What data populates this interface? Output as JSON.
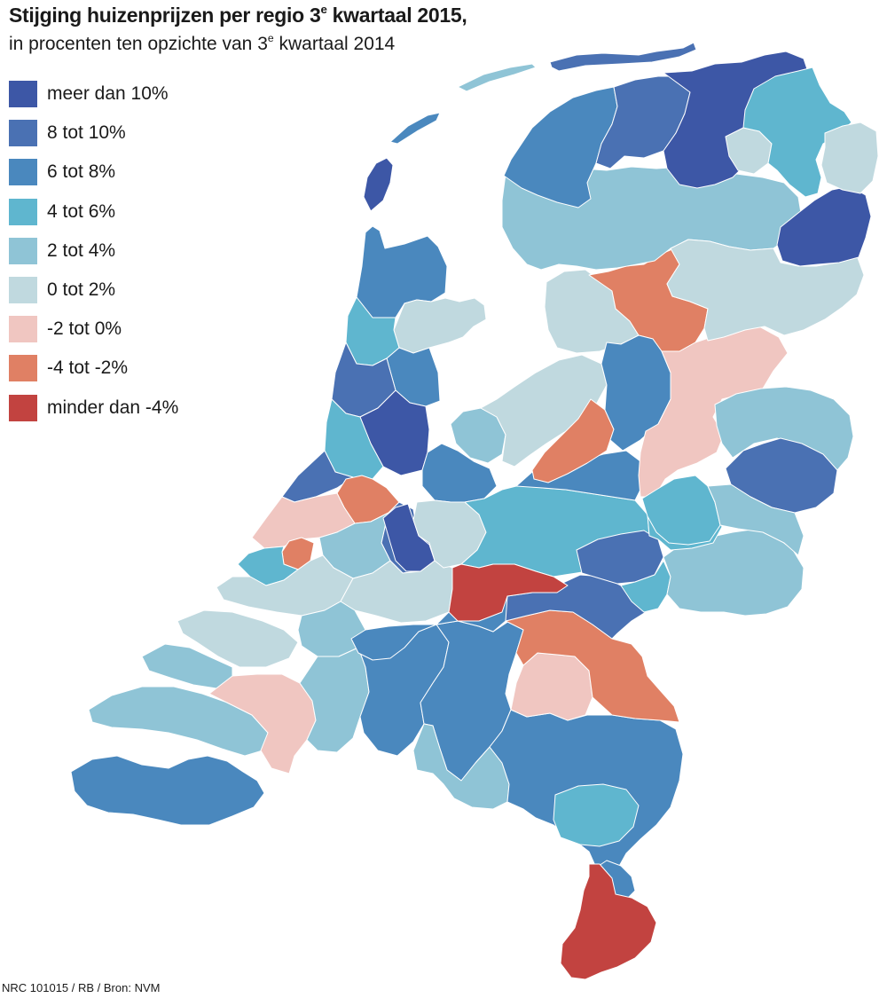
{
  "title": {
    "main": "Stijging huizenprijzen per regio 3",
    "main_sup": "e",
    "main_end": " kwartaal 2015,",
    "sub": "in procenten ten opzichte van 3",
    "sub_sup": "e",
    "sub_end": " kwartaal 2014"
  },
  "legend": [
    {
      "label": "meer dan 10%",
      "color": "#3d57a6"
    },
    {
      "label": "8 tot 10%",
      "color": "#4a71b3"
    },
    {
      "label": "6 tot 8%",
      "color": "#4a88be"
    },
    {
      "label": "4 tot 6%",
      "color": "#5fb6cf"
    },
    {
      "label": "2 tot 4%",
      "color": "#8fc4d6"
    },
    {
      "label": "0 tot 2%",
      "color": "#c0d9df"
    },
    {
      "label": "-2 tot 0%",
      "color": "#f0c6c1"
    },
    {
      "label": "-4 tot -2%",
      "color": "#e08064"
    },
    {
      "label": "minder dan -4%",
      "color": "#c24340"
    }
  ],
  "source": "NRC 101015 / RB / Bron: NVM"
}
